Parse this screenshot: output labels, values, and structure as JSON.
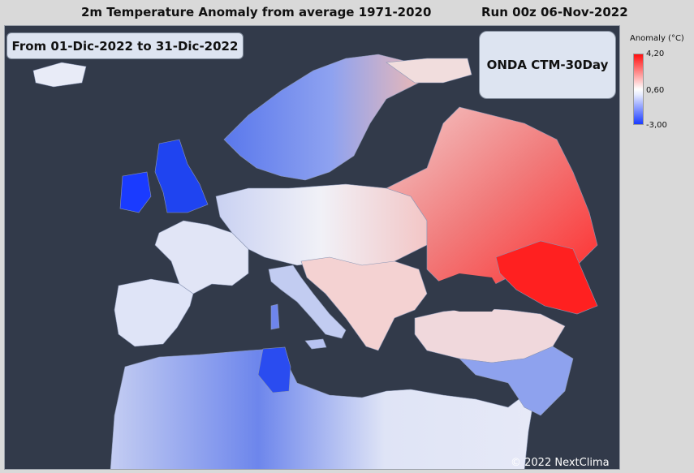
{
  "header": {
    "title": "2m Temperature Anomaly from average 1971-2020",
    "run": "Run 00z 06-Nov-2022"
  },
  "period": "From 01-Dic-2022 to 31-Dic-2022",
  "model": "ONDA CTM-30Day",
  "copyright": "© 2022 NextClima",
  "legend": {
    "title": "Anomaly (°C)",
    "max": "4,20",
    "mid": "0,60",
    "min": "-3,00",
    "colors": {
      "max": "#ff0f0f",
      "mid": "#ffffff",
      "min": "#1a3bff"
    }
  },
  "map": {
    "sea_color": "#323a4a",
    "regions": [
      {
        "name": "russia-west",
        "anomaly": 2.5
      },
      {
        "name": "caucasus",
        "anomaly": 4.2
      },
      {
        "name": "ukraine",
        "anomaly": 2.0
      },
      {
        "name": "balkans",
        "anomaly": 1.2
      },
      {
        "name": "central-europe",
        "anomaly": 0.4
      },
      {
        "name": "scandinavia",
        "anomaly": -2.0
      },
      {
        "name": "british-isles",
        "anomaly": -3.0
      },
      {
        "name": "iberia",
        "anomaly": -0.6
      },
      {
        "name": "north-africa",
        "anomaly": -0.8
      },
      {
        "name": "tunisia",
        "anomaly": -2.6
      },
      {
        "name": "turkey",
        "anomaly": 0.9
      }
    ]
  }
}
